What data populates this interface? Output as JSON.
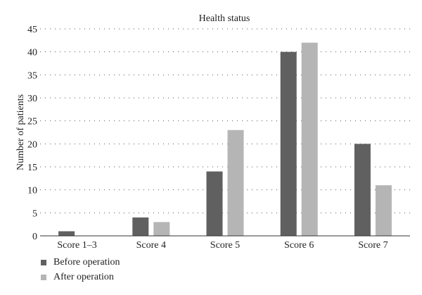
{
  "chart_data": {
    "type": "bar",
    "title": "Health status",
    "xlabel": "",
    "ylabel": "Number of patients",
    "categories": [
      "Score 1–3",
      "Score 4",
      "Score 5",
      "Score 6",
      "Score 7"
    ],
    "series": [
      {
        "name": "Before operation",
        "color": "#606060",
        "values": [
          1,
          4,
          14,
          40,
          20
        ]
      },
      {
        "name": "After operation",
        "color": "#b5b5b5",
        "values": [
          0,
          3,
          23,
          42,
          11
        ]
      }
    ],
    "ylim": [
      0,
      45
    ],
    "yticks": [
      0,
      5,
      10,
      15,
      20,
      25,
      30,
      35,
      40,
      45
    ],
    "grid": "horizontal dotted",
    "legend_position": "bottom-left"
  }
}
